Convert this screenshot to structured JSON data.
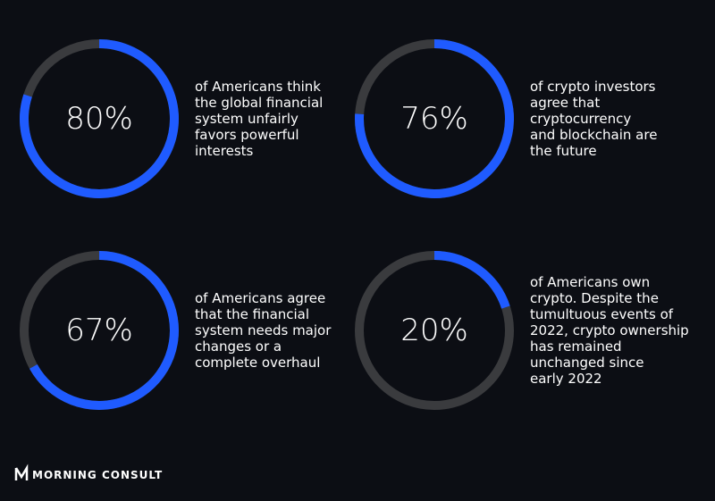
{
  "chart_data": [
    {
      "type": "donut",
      "values": [
        80
      ],
      "value_labels": [
        "80%"
      ],
      "color": "#1f5bff",
      "description": [
        "of Americans think",
        "the global financial",
        "system unfairly",
        "favors powerful",
        "interests"
      ]
    },
    {
      "type": "donut",
      "values": [
        76
      ],
      "value_labels": [
        "76%"
      ],
      "color": "#1f5bff",
      "description": [
        "of crypto investors",
        "agree that",
        "cryptocurrency",
        "and blockchain are",
        "the future"
      ]
    },
    {
      "type": "donut",
      "values": [
        67
      ],
      "value_labels": [
        "67%"
      ],
      "color": "#1f5bff",
      "description": [
        "of Americans agree",
        "that the financial",
        "system needs major",
        "changes or a",
        "complete overhaul"
      ]
    },
    {
      "type": "donut",
      "values": [
        20
      ],
      "value_labels": [
        "20%"
      ],
      "color": "#1f5bff",
      "description": [
        "of Americans own",
        "crypto. Despite the",
        "tumultuous events of",
        "2022, crypto ownership",
        "has remained",
        "unchanged since",
        "early 2022"
      ]
    }
  ],
  "footer": {
    "brand": "MORNING CONSULT"
  }
}
